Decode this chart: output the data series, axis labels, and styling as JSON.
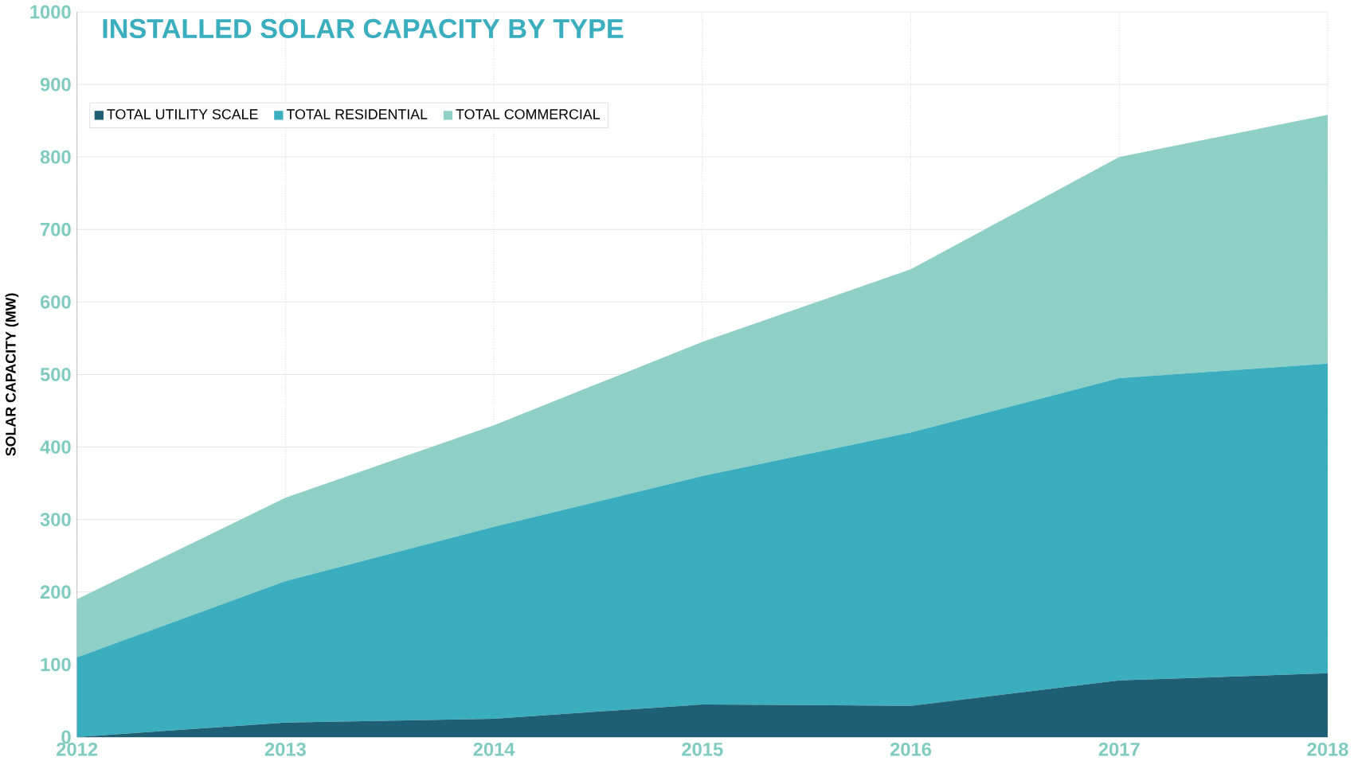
{
  "chart_data": {
    "type": "area",
    "title": "INSTALLED SOLAR CAPACITY BY TYPE",
    "ylabel": "SOLAR CAPACITY (MW)",
    "stacked": true,
    "x": [
      2012,
      2013,
      2014,
      2015,
      2016,
      2017,
      2018
    ],
    "series": [
      {
        "name": "TOTAL UTILITY SCALE",
        "color": "#1e5f74",
        "values": [
          0,
          20,
          25,
          45,
          43,
          78,
          88
        ]
      },
      {
        "name": "TOTAL RESIDENTIAL",
        "color": "#3aaebf",
        "values": [
          110,
          195,
          265,
          315,
          377,
          417,
          427
        ]
      },
      {
        "name": "TOTAL COMMERCIAL",
        "color": "#8ecfc6",
        "values": [
          80,
          115,
          140,
          185,
          225,
          305,
          343
        ]
      }
    ],
    "xlim": [
      2012,
      2018
    ],
    "ylim": [
      0,
      1000
    ],
    "xticks": [
      2012,
      2013,
      2014,
      2015,
      2016,
      2017,
      2018
    ],
    "yticks": [
      0,
      100,
      200,
      300,
      400,
      500,
      600,
      700,
      800,
      900,
      1000
    ],
    "grid": true,
    "legend": "top left"
  }
}
